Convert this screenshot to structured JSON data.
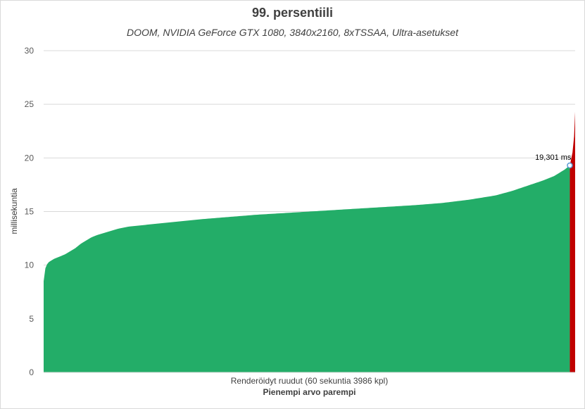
{
  "chart_data": {
    "type": "area",
    "title": "99. persentiili",
    "subtitle": "DOOM, NVIDIA GeForce GTX 1080, 3840x2160, 8xTSSAA, Ultra-asetukset",
    "ylabel": "millisekuntia",
    "xlabel": "Renderöidyt ruudut (60 sekuntia 3986 kpl)",
    "xnote": "Pienempi arvo parempi",
    "ylim": [
      0,
      30
    ],
    "yticks": [
      0,
      5,
      10,
      15,
      20,
      25,
      30
    ],
    "frame_count": 3986,
    "grid": true,
    "colors": {
      "main": "#23ad68",
      "over_percentile": "#c00000",
      "marker": "#5b9bd5"
    },
    "percentile": {
      "label": "19,301 ms",
      "value": 19.301,
      "fraction": 0.99
    },
    "curve": [
      {
        "p": 0.0,
        "v": 8.5
      },
      {
        "p": 0.002,
        "v": 9.5
      },
      {
        "p": 0.005,
        "v": 10.0
      },
      {
        "p": 0.01,
        "v": 10.3
      },
      {
        "p": 0.02,
        "v": 10.6
      },
      {
        "p": 0.03,
        "v": 10.8
      },
      {
        "p": 0.04,
        "v": 11.0
      },
      {
        "p": 0.05,
        "v": 11.3
      },
      {
        "p": 0.06,
        "v": 11.6
      },
      {
        "p": 0.07,
        "v": 12.0
      },
      {
        "p": 0.08,
        "v": 12.3
      },
      {
        "p": 0.09,
        "v": 12.6
      },
      {
        "p": 0.1,
        "v": 12.8
      },
      {
        "p": 0.12,
        "v": 13.1
      },
      {
        "p": 0.14,
        "v": 13.4
      },
      {
        "p": 0.16,
        "v": 13.6
      },
      {
        "p": 0.18,
        "v": 13.7
      },
      {
        "p": 0.2,
        "v": 13.8
      },
      {
        "p": 0.25,
        "v": 14.05
      },
      {
        "p": 0.3,
        "v": 14.3
      },
      {
        "p": 0.35,
        "v": 14.5
      },
      {
        "p": 0.4,
        "v": 14.7
      },
      {
        "p": 0.45,
        "v": 14.85
      },
      {
        "p": 0.5,
        "v": 15.0
      },
      {
        "p": 0.55,
        "v": 15.15
      },
      {
        "p": 0.6,
        "v": 15.3
      },
      {
        "p": 0.65,
        "v": 15.45
      },
      {
        "p": 0.7,
        "v": 15.6
      },
      {
        "p": 0.75,
        "v": 15.8
      },
      {
        "p": 0.8,
        "v": 16.1
      },
      {
        "p": 0.85,
        "v": 16.5
      },
      {
        "p": 0.88,
        "v": 16.9
      },
      {
        "p": 0.91,
        "v": 17.4
      },
      {
        "p": 0.94,
        "v": 17.9
      },
      {
        "p": 0.96,
        "v": 18.3
      },
      {
        "p": 0.98,
        "v": 18.9
      },
      {
        "p": 0.99,
        "v": 19.301
      },
      {
        "p": 0.995,
        "v": 20.5
      },
      {
        "p": 0.998,
        "v": 22.0
      },
      {
        "p": 1.0,
        "v": 24.3
      }
    ]
  }
}
